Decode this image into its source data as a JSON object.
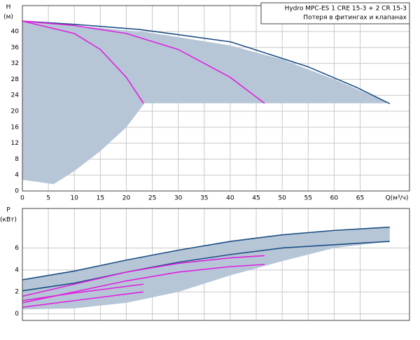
{
  "chart_data": [
    {
      "type": "line",
      "ylabel": [
        "H",
        "(м)"
      ],
      "xlabel": "Q(м³/ч)",
      "legend_lines": [
        "Hydro MPC-ES 1 CRE 15-3  +  2 CR 15-3",
        "Потеря в фитингах и клапанах"
      ],
      "xlim": [
        0,
        74.5
      ],
      "ylim": [
        0,
        46.5
      ],
      "xticks": [
        0,
        5,
        10,
        15,
        20,
        25,
        30,
        35,
        40,
        45,
        50,
        55,
        60,
        65
      ],
      "yticks": [
        0,
        4,
        8,
        12,
        16,
        20,
        24,
        28,
        32,
        36,
        40
      ],
      "grid": true,
      "series": [
        {
          "kind": "area",
          "color": "#b6c6d6",
          "x": [
            0,
            6,
            10,
            15,
            20,
            23.5,
            30,
            40,
            50,
            60,
            70.7
          ],
          "values": [
            42.6,
            42.1,
            41.5,
            40.9,
            40.3,
            39.9,
            38.6,
            36.5,
            33,
            28,
            22
          ],
          "lower": [
            2.8,
            1.7,
            5,
            10,
            16,
            22,
            22,
            22,
            22,
            22,
            22
          ]
        },
        {
          "kind": "line",
          "color": "#1c4f84",
          "x": [
            0,
            10,
            22.6,
            30,
            40.1,
            54.9,
            64.3,
            70.7
          ],
          "values": [
            42.6,
            41.8,
            40.5,
            39.2,
            37.4,
            31.2,
            26,
            21.9
          ]
        },
        {
          "kind": "line",
          "color": "#e020e0",
          "x": [
            0,
            10,
            15,
            20,
            23.3
          ],
          "values": [
            42.6,
            39.5,
            35.5,
            28.5,
            22
          ]
        },
        {
          "kind": "line",
          "color": "#e020e0",
          "x": [
            0,
            10,
            20,
            30,
            40,
            46.6
          ],
          "values": [
            42.6,
            41.5,
            39.5,
            35.5,
            28.5,
            22
          ]
        }
      ]
    },
    {
      "type": "line",
      "ylabel": [
        "P",
        "(кВт)"
      ],
      "xlim": [
        0,
        74.5
      ],
      "ylim": [
        -0.6,
        9.6
      ],
      "xticks": [
        0,
        5,
        10,
        15,
        20,
        25,
        30,
        35,
        40,
        45,
        50,
        55,
        60,
        65
      ],
      "yticks": [
        0,
        2,
        4,
        6
      ],
      "grid": true,
      "series": [
        {
          "kind": "area",
          "color": "#b6c6d6",
          "x": [
            0,
            10,
            20,
            30,
            40,
            50,
            60,
            70.7
          ],
          "values": [
            3.1,
            3.9,
            4.9,
            5.8,
            6.6,
            7.2,
            7.6,
            7.9
          ],
          "lower": [
            0.4,
            0.5,
            1,
            2,
            3.5,
            4.8,
            6,
            6.6
          ]
        },
        {
          "kind": "line",
          "color": "#1c4f84",
          "x": [
            0,
            10,
            20,
            30,
            40,
            50,
            60,
            70.7
          ],
          "values": [
            3.1,
            3.9,
            4.9,
            5.8,
            6.6,
            7.2,
            7.6,
            7.9
          ]
        },
        {
          "kind": "line",
          "color": "#1c4f84",
          "x": [
            0,
            10,
            20,
            30,
            40,
            50,
            60,
            70.7
          ],
          "values": [
            2.1,
            2.8,
            3.8,
            4.7,
            5.4,
            6.0,
            6.3,
            6.6
          ]
        },
        {
          "kind": "line",
          "color": "#e020e0",
          "x": [
            0,
            10,
            20,
            23.3
          ],
          "values": [
            0.6,
            1.2,
            1.8,
            2.0
          ]
        },
        {
          "kind": "line",
          "color": "#e020e0",
          "x": [
            0,
            10,
            20,
            23.3
          ],
          "values": [
            1.2,
            1.9,
            2.5,
            2.7
          ]
        },
        {
          "kind": "line",
          "color": "#e020e0",
          "x": [
            0,
            10,
            20,
            30,
            40,
            46.6
          ],
          "values": [
            1.0,
            2.0,
            3.0,
            3.8,
            4.3,
            4.5
          ]
        },
        {
          "kind": "line",
          "color": "#e020e0",
          "x": [
            0,
            10,
            20,
            30,
            40,
            46.6
          ],
          "values": [
            1.6,
            2.7,
            3.8,
            4.6,
            5.1,
            5.3
          ]
        }
      ]
    }
  ]
}
